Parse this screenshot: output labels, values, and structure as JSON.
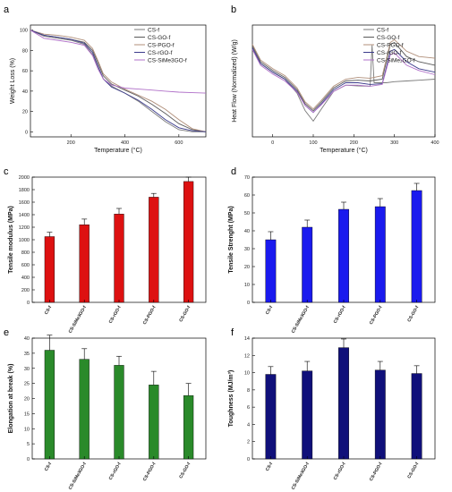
{
  "panels": {
    "a": "a",
    "b": "b",
    "c": "c",
    "d": "d",
    "e": "e",
    "f": "f"
  },
  "chart_data": [
    {
      "id": "a",
      "type": "line",
      "xlabel": "Temperature (°C)",
      "ylabel": "Weight Loss (%)",
      "xlim": [
        50,
        700
      ],
      "ylim": [
        -5,
        105
      ],
      "xticks": [
        200,
        400,
        600
      ],
      "yticks": [
        0,
        20,
        40,
        60,
        80,
        100
      ],
      "legend_position": "top-right",
      "series": [
        {
          "name": "CS-f",
          "color": "#7a7a7a",
          "x": [
            50,
            100,
            150,
            200,
            250,
            280,
            300,
            320,
            350,
            400,
            450,
            500,
            550,
            600,
            650,
            700
          ],
          "y": [
            100,
            94,
            92,
            90,
            86,
            76,
            64,
            52,
            45,
            38,
            30,
            20,
            10,
            2,
            0,
            0
          ]
        },
        {
          "name": "CS-GO-f",
          "color": "#5a5a5a",
          "x": [
            50,
            100,
            150,
            200,
            250,
            280,
            300,
            320,
            350,
            400,
            450,
            500,
            550,
            600,
            650,
            700
          ],
          "y": [
            100,
            95,
            93,
            91,
            88,
            80,
            68,
            55,
            47,
            41,
            35,
            27,
            18,
            8,
            2,
            0
          ]
        },
        {
          "name": "CS-PGO-f",
          "color": "#b08f7a",
          "x": [
            50,
            100,
            150,
            200,
            250,
            280,
            300,
            320,
            350,
            400,
            450,
            500,
            550,
            600,
            650,
            700
          ],
          "y": [
            100,
            96,
            95,
            93,
            90,
            82,
            70,
            57,
            49,
            42,
            36,
            30,
            22,
            12,
            3,
            0
          ]
        },
        {
          "name": "CS-rGO-f",
          "color": "#3c3c8c",
          "x": [
            50,
            100,
            150,
            200,
            250,
            280,
            300,
            320,
            350,
            400,
            450,
            500,
            550,
            600,
            650,
            700
          ],
          "y": [
            100,
            95,
            93,
            91,
            87,
            78,
            65,
            52,
            44,
            38,
            31,
            22,
            12,
            4,
            1,
            0
          ]
        },
        {
          "name": "CS-SiMe3GO-f",
          "color": "#b070c8",
          "x": [
            50,
            100,
            150,
            200,
            250,
            280,
            300,
            320,
            350,
            400,
            450,
            500,
            550,
            600,
            650,
            700
          ],
          "y": [
            100,
            92,
            90,
            88,
            85,
            75,
            62,
            52,
            46,
            43,
            42,
            41,
            40,
            39,
            38.5,
            38
          ]
        }
      ]
    },
    {
      "id": "b",
      "type": "line",
      "xlabel": "Temperature (°C)",
      "ylabel": "Heat Flow (Normalized) (W/g)",
      "xlim": [
        -50,
        400
      ],
      "xticks": [
        0,
        100,
        200,
        300,
        400
      ],
      "ylim": [
        -2.2,
        1.0
      ],
      "legend_position": "top-right",
      "series": [
        {
          "name": "CS-f",
          "color": "#7a7a7a",
          "x": [
            -50,
            -30,
            0,
            30,
            60,
            80,
            100,
            120,
            150,
            180,
            210,
            240,
            245,
            250,
            280,
            300,
            330,
            360,
            400
          ],
          "y": [
            0.3,
            -0.1,
            -0.35,
            -0.55,
            -0.95,
            -1.45,
            -1.75,
            -1.4,
            -0.9,
            -0.72,
            -0.74,
            -0.75,
            0.42,
            -0.65,
            -0.65,
            -0.62,
            -0.6,
            -0.58,
            -0.55
          ]
        },
        {
          "name": "CS-GO-f",
          "color": "#5a5a5a",
          "x": [
            -50,
            -30,
            0,
            30,
            60,
            80,
            100,
            120,
            150,
            180,
            210,
            240,
            270,
            290,
            300,
            330,
            360,
            400
          ],
          "y": [
            0.4,
            -0.05,
            -0.3,
            -0.5,
            -0.85,
            -1.25,
            -1.45,
            -1.2,
            -0.8,
            -0.6,
            -0.58,
            -0.6,
            -0.55,
            0.45,
            0.5,
            0.1,
            -0.05,
            -0.15
          ]
        },
        {
          "name": "CS-PGO-f",
          "color": "#b08f7a",
          "x": [
            -50,
            -30,
            0,
            30,
            60,
            80,
            100,
            120,
            150,
            180,
            210,
            240,
            270,
            290,
            300,
            330,
            360,
            400
          ],
          "y": [
            0.45,
            0.0,
            -0.25,
            -0.45,
            -0.8,
            -1.2,
            -1.4,
            -1.15,
            -0.75,
            -0.55,
            -0.5,
            -0.52,
            -0.45,
            0.5,
            0.58,
            0.25,
            0.1,
            0.05
          ]
        },
        {
          "name": "CS-rGO-f",
          "color": "#3c3c8c",
          "x": [
            -50,
            -30,
            0,
            30,
            60,
            80,
            100,
            120,
            150,
            180,
            210,
            240,
            270,
            290,
            300,
            330,
            360,
            400
          ],
          "y": [
            0.35,
            -0.1,
            -0.35,
            -0.55,
            -0.9,
            -1.3,
            -1.5,
            -1.25,
            -0.85,
            -0.65,
            -0.65,
            -0.7,
            -0.68,
            0.25,
            0.3,
            -0.05,
            -0.25,
            -0.35
          ]
        },
        {
          "name": "CS-SiMe₂GO-f",
          "color": "#b070c8",
          "x": [
            -50,
            -30,
            0,
            30,
            60,
            80,
            100,
            120,
            150,
            180,
            210,
            240,
            270,
            290,
            300,
            330,
            360,
            400
          ],
          "y": [
            0.3,
            -0.15,
            -0.4,
            -0.6,
            -0.92,
            -1.3,
            -1.5,
            -1.28,
            -0.9,
            -0.72,
            -0.72,
            -0.75,
            -0.7,
            0.15,
            0.2,
            -0.15,
            -0.3,
            -0.42
          ]
        }
      ]
    },
    {
      "id": "c",
      "type": "bar",
      "ylabel": "Tensile modulus (MPa)",
      "ylim": [
        0,
        2000
      ],
      "yticks": [
        0,
        200,
        400,
        600,
        800,
        1000,
        1200,
        1400,
        1600,
        1800,
        2000
      ],
      "bar_color": "#dd1111",
      "categories": [
        "CS-f",
        "CS-SiMe3GO-f",
        "CS-rGO-f",
        "CS-PGO-f",
        "CS-GO-f"
      ],
      "values": [
        1050,
        1240,
        1410,
        1680,
        1930
      ],
      "errors": [
        70,
        90,
        90,
        60,
        70
      ]
    },
    {
      "id": "d",
      "type": "bar",
      "ylabel": "Tensile Strenght (MPa)",
      "ylim": [
        0,
        70
      ],
      "yticks": [
        0,
        10,
        20,
        30,
        40,
        50,
        60,
        70
      ],
      "bar_color": "#1a1aee",
      "categories": [
        "CS-f",
        "CS-SiMe3GO-f",
        "CS-rGO-f",
        "CS-PGO-f",
        "CS-GO-f"
      ],
      "values": [
        35,
        42,
        52,
        53.5,
        62.5
      ],
      "errors": [
        4.5,
        4,
        4,
        4.5,
        4
      ]
    },
    {
      "id": "e",
      "type": "bar",
      "ylabel": "Elongation at break (%)",
      "ylim": [
        0,
        40
      ],
      "yticks": [
        0,
        5,
        10,
        15,
        20,
        25,
        30,
        35,
        40
      ],
      "bar_color": "#2a8a2a",
      "categories": [
        "CS-f",
        "CS-SiMe3GO-f",
        "CS-rGO-f",
        "CS-PGO-f",
        "CS-GO-f"
      ],
      "values": [
        36,
        33,
        31,
        24.5,
        21
      ],
      "errors": [
        5,
        3.5,
        3,
        4.5,
        4
      ]
    },
    {
      "id": "f",
      "type": "bar",
      "ylabel": "Toughness (MJ/m³)",
      "ylim": [
        0,
        14
      ],
      "yticks": [
        0,
        2,
        4,
        6,
        8,
        10,
        12,
        14
      ],
      "bar_color": "#10107a",
      "categories": [
        "CS-f",
        "CS-SiMe3GO-f",
        "CS-rGO-f",
        "CS-PGO-f",
        "CS-GO-f"
      ],
      "values": [
        9.8,
        10.2,
        12.9,
        10.3,
        9.9
      ],
      "errors": [
        0.9,
        1.1,
        1.0,
        1.0,
        0.9
      ]
    }
  ]
}
